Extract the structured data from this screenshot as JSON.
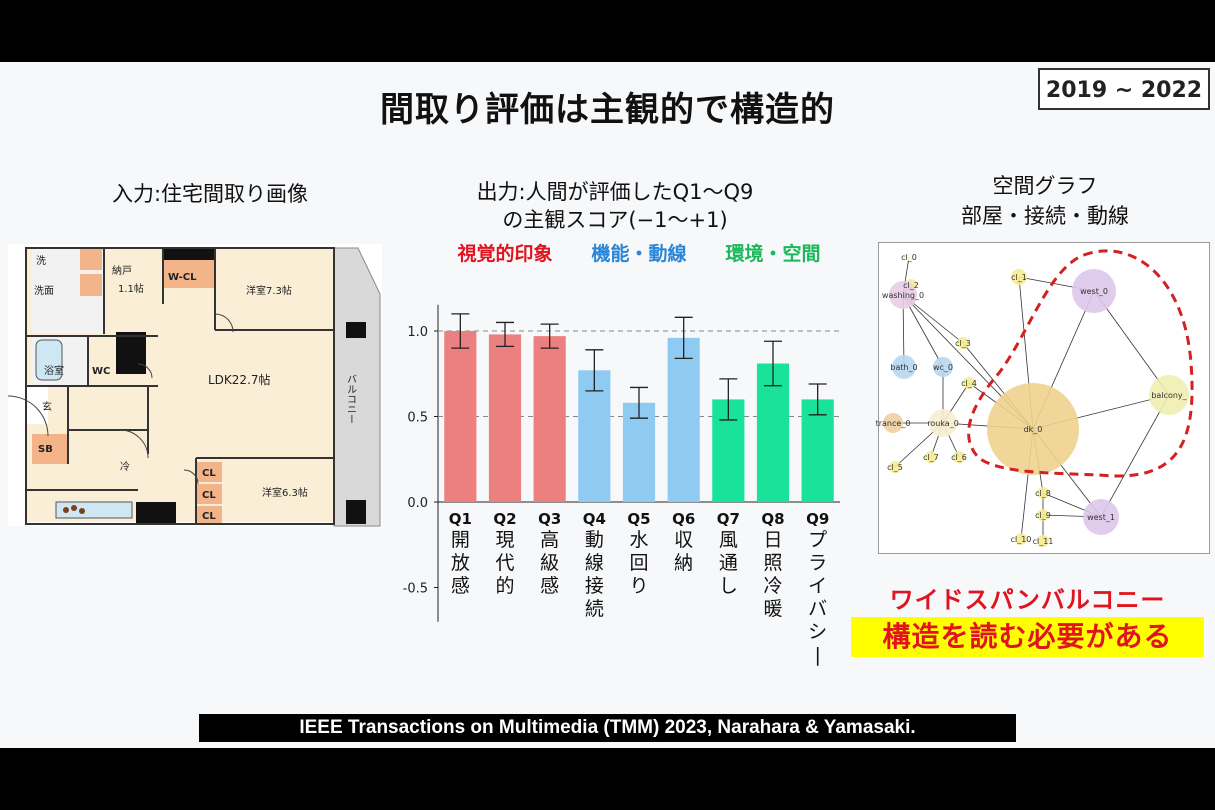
{
  "slide": {
    "title": "間取り評価は主観的で構造的",
    "year_range": "2019 ~ 2022",
    "input_caption": "入力:住宅間取り画像",
    "output_caption_line1": "出力:人間が評価したQ1～Q9",
    "output_caption_line2": "の主観スコア(−1～+1)",
    "graph_caption_line1": "空間グラフ",
    "graph_caption_line2": "部屋・接続・動線",
    "emphasis_line1": "ワイドスパンバルコニー",
    "emphasis_line2": "構造を読む必要がある",
    "citation": "IEEE Transactions on Multimedia (TMM) 2023, Narahara & Yamasaki."
  },
  "floorplan": {
    "rooms": [
      "洗",
      "洗面",
      "納戸",
      "1.1帖",
      "W-CL",
      "洋室7.3帖",
      "浴室",
      "WC",
      "LDK22.7帖",
      "バルコニー",
      "玄",
      "SB",
      "冷",
      "CL",
      "CL",
      "CL",
      "洋室6.3帖"
    ]
  },
  "chart_data": {
    "type": "bar",
    "categories": [
      "Q1",
      "Q2",
      "Q3",
      "Q4",
      "Q5",
      "Q6",
      "Q7",
      "Q8",
      "Q9"
    ],
    "category_labels": [
      "開放感",
      "現代的",
      "高級感",
      "動線接続",
      "水回り",
      "収納",
      "風通し",
      "日照冷暖",
      "プライバシー"
    ],
    "values": [
      1.0,
      0.98,
      0.97,
      0.77,
      0.58,
      0.96,
      0.6,
      0.81,
      0.6
    ],
    "errors": [
      0.1,
      0.07,
      0.07,
      0.12,
      0.09,
      0.12,
      0.12,
      0.13,
      0.09
    ],
    "colors": [
      "#ec8080",
      "#ec8080",
      "#ec8080",
      "#8ecaf2",
      "#8ecaf2",
      "#8ecaf2",
      "#19e39a",
      "#19e39a",
      "#19e39a"
    ],
    "groups": [
      {
        "name": "視覚的印象",
        "color": "#e0141e"
      },
      {
        "name": "機能・動線",
        "color": "#2a86d6"
      },
      {
        "name": "環境・空間",
        "color": "#19b85a"
      }
    ],
    "yticks": [
      "1.0",
      "0.5",
      "0.0",
      "-0.5"
    ],
    "ylim": [
      -0.7,
      1.2
    ]
  },
  "space_graph": {
    "nodes": [
      {
        "name": "cl_0",
        "color": "#fffbe0"
      },
      {
        "name": "cl_1",
        "color": "#f6ec90"
      },
      {
        "name": "cl_2",
        "color": "#f6ec90"
      },
      {
        "name": "washing_0",
        "color": "#e8cde6"
      },
      {
        "name": "west_0",
        "color": "#ddc6ea"
      },
      {
        "name": "cl_3",
        "color": "#f6ec90"
      },
      {
        "name": "bath_0",
        "color": "#b7d7f0"
      },
      {
        "name": "wc_0",
        "color": "#b7d7f0"
      },
      {
        "name": "cl_4",
        "color": "#f6ec90"
      },
      {
        "name": "balcony_",
        "color": "#eeeeb0"
      },
      {
        "name": "trance_0",
        "color": "#f0cfa0"
      },
      {
        "name": "rouka_0",
        "color": "#f7eed0"
      },
      {
        "name": "dk_0",
        "color": "#f0d28e"
      },
      {
        "name": "cl_5",
        "color": "#f6ec90"
      },
      {
        "name": "cl_7",
        "color": "#f6ec90"
      },
      {
        "name": "cl_6",
        "color": "#f6ec90"
      },
      {
        "name": "cl_8",
        "color": "#f6ec90"
      },
      {
        "name": "cl_9",
        "color": "#f6ec90"
      },
      {
        "name": "west_1",
        "color": "#ddc6ea"
      },
      {
        "name": "cl_10",
        "color": "#f6ec90"
      },
      {
        "name": "cl_11",
        "color": "#f6ec90"
      }
    ]
  }
}
